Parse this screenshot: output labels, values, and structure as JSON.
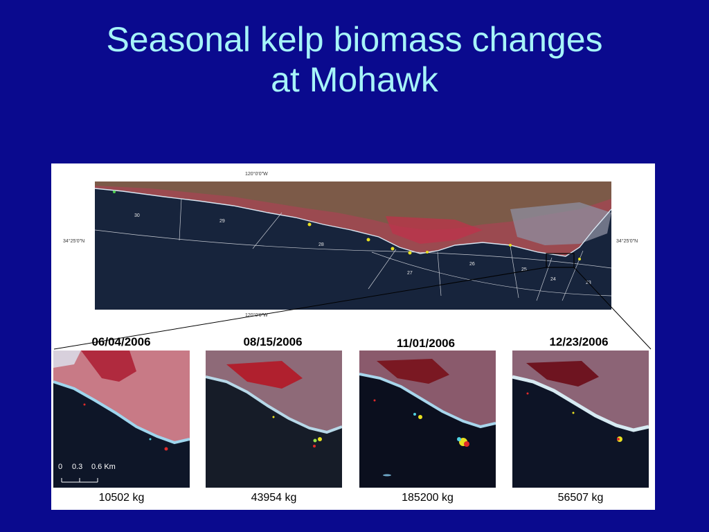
{
  "slide": {
    "title_line1": "Seasonal kelp biomass changes",
    "title_line2": "at Mohawk"
  },
  "overview_map": {
    "lon_top": "120°0'0\"W",
    "lon_bottom": "120°0'0\"W",
    "lat_left": "34°25'0\"N",
    "lat_right": "34°25'0\"N",
    "zones": [
      "30",
      "29",
      "28",
      "27",
      "26",
      "25",
      "24",
      "23"
    ]
  },
  "panels": [
    {
      "date": "06/04/2006",
      "biomass": "10502 kg"
    },
    {
      "date": "08/15/2006",
      "biomass": "43954 kg"
    },
    {
      "date": "11/01/2006",
      "biomass": "185200 kg"
    },
    {
      "date": "12/23/2006",
      "biomass": "56507 kg"
    }
  ],
  "scale_bar": {
    "ticks": [
      "0",
      "0.3",
      "0.6 Km"
    ]
  },
  "colors": {
    "background": "#0a0a8e",
    "title": "#a6f4f8",
    "kelp": "#e8e020",
    "land": "#c8404e",
    "ocean": "#17243c"
  }
}
